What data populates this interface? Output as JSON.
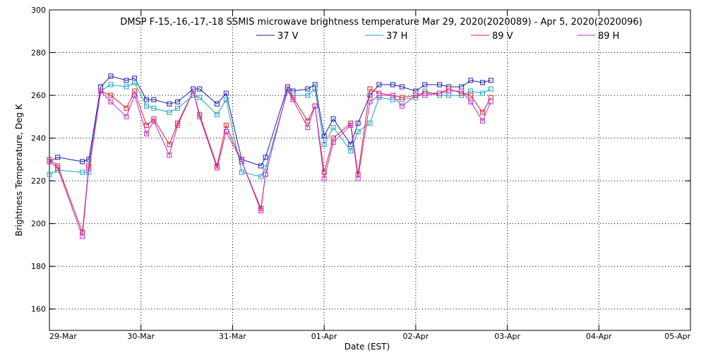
{
  "chart_data": {
    "type": "line",
    "title": "DMSP F-15,-16,-17,-18 SSMIS microwave brightness temperature Mar 29, 2020(2020089) - Apr  5, 2020(2020096)",
    "xlabel": "Date (EST)",
    "ylabel": "Brightness Temperature, Deg K",
    "ylim": [
      150,
      300
    ],
    "yticks": [
      160,
      180,
      200,
      220,
      240,
      260,
      280,
      300
    ],
    "xlim_days": [
      0,
      7
    ],
    "xtick_labels": [
      "29-Mar",
      "30-Mar",
      "31-Mar",
      "01-Apr",
      "02-Apr",
      "03-Apr",
      "04-Apr",
      "05-Apr"
    ],
    "grid": true,
    "legend_position": "top",
    "marker": "square",
    "x": [
      0.0,
      0.09,
      0.36,
      0.43,
      0.56,
      0.67,
      0.84,
      0.93,
      1.06,
      1.14,
      1.31,
      1.4,
      1.57,
      1.64,
      1.83,
      1.93,
      2.1,
      2.31,
      2.36,
      2.6,
      2.66,
      2.82,
      2.9,
      3.0,
      3.1,
      3.29,
      3.37,
      3.5,
      3.6,
      3.75,
      3.85,
      4.0,
      4.1,
      4.26,
      4.36,
      4.5,
      4.6,
      4.73,
      4.82
    ],
    "series": [
      {
        "name": "37 V",
        "color": "#1c1cae",
        "values": [
          229,
          231,
          229,
          230,
          264,
          269,
          267,
          268,
          258,
          258,
          256,
          257,
          263,
          263,
          256,
          261,
          230,
          227,
          231,
          264,
          262,
          263,
          265,
          241,
          249,
          237,
          247,
          260,
          265,
          265,
          264,
          262,
          265,
          265,
          264,
          264,
          267,
          266,
          267
        ]
      },
      {
        "name": "37 H",
        "color": "#1ea0c8",
        "values": [
          223,
          225,
          224,
          224,
          262,
          265,
          264,
          266,
          255,
          254,
          252,
          254,
          260,
          259,
          251,
          258,
          224,
          222,
          226,
          262,
          260,
          260,
          263,
          237,
          245,
          234,
          243,
          247,
          259,
          258,
          258,
          259,
          262,
          260,
          260,
          260,
          262,
          261,
          263
        ]
      },
      {
        "name": "89 V",
        "color": "#d8202a",
        "values": [
          230,
          227,
          196,
          227,
          262,
          260,
          254,
          262,
          246,
          249,
          237,
          247,
          262,
          251,
          227,
          246,
          229,
          207,
          223,
          263,
          259,
          248,
          255,
          224,
          240,
          247,
          223,
          263,
          261,
          260,
          259,
          260,
          261,
          261,
          263,
          261,
          260,
          252,
          259
        ]
      },
      {
        "name": "89 H",
        "color": "#c228c8",
        "values": [
          229,
          226,
          194,
          226,
          262,
          257,
          250,
          260,
          242,
          248,
          232,
          246,
          262,
          250,
          226,
          243,
          229,
          206,
          223,
          263,
          258,
          245,
          255,
          221,
          238,
          246,
          221,
          257,
          260,
          260,
          255,
          260,
          260,
          261,
          262,
          262,
          257,
          248,
          257
        ]
      }
    ]
  }
}
